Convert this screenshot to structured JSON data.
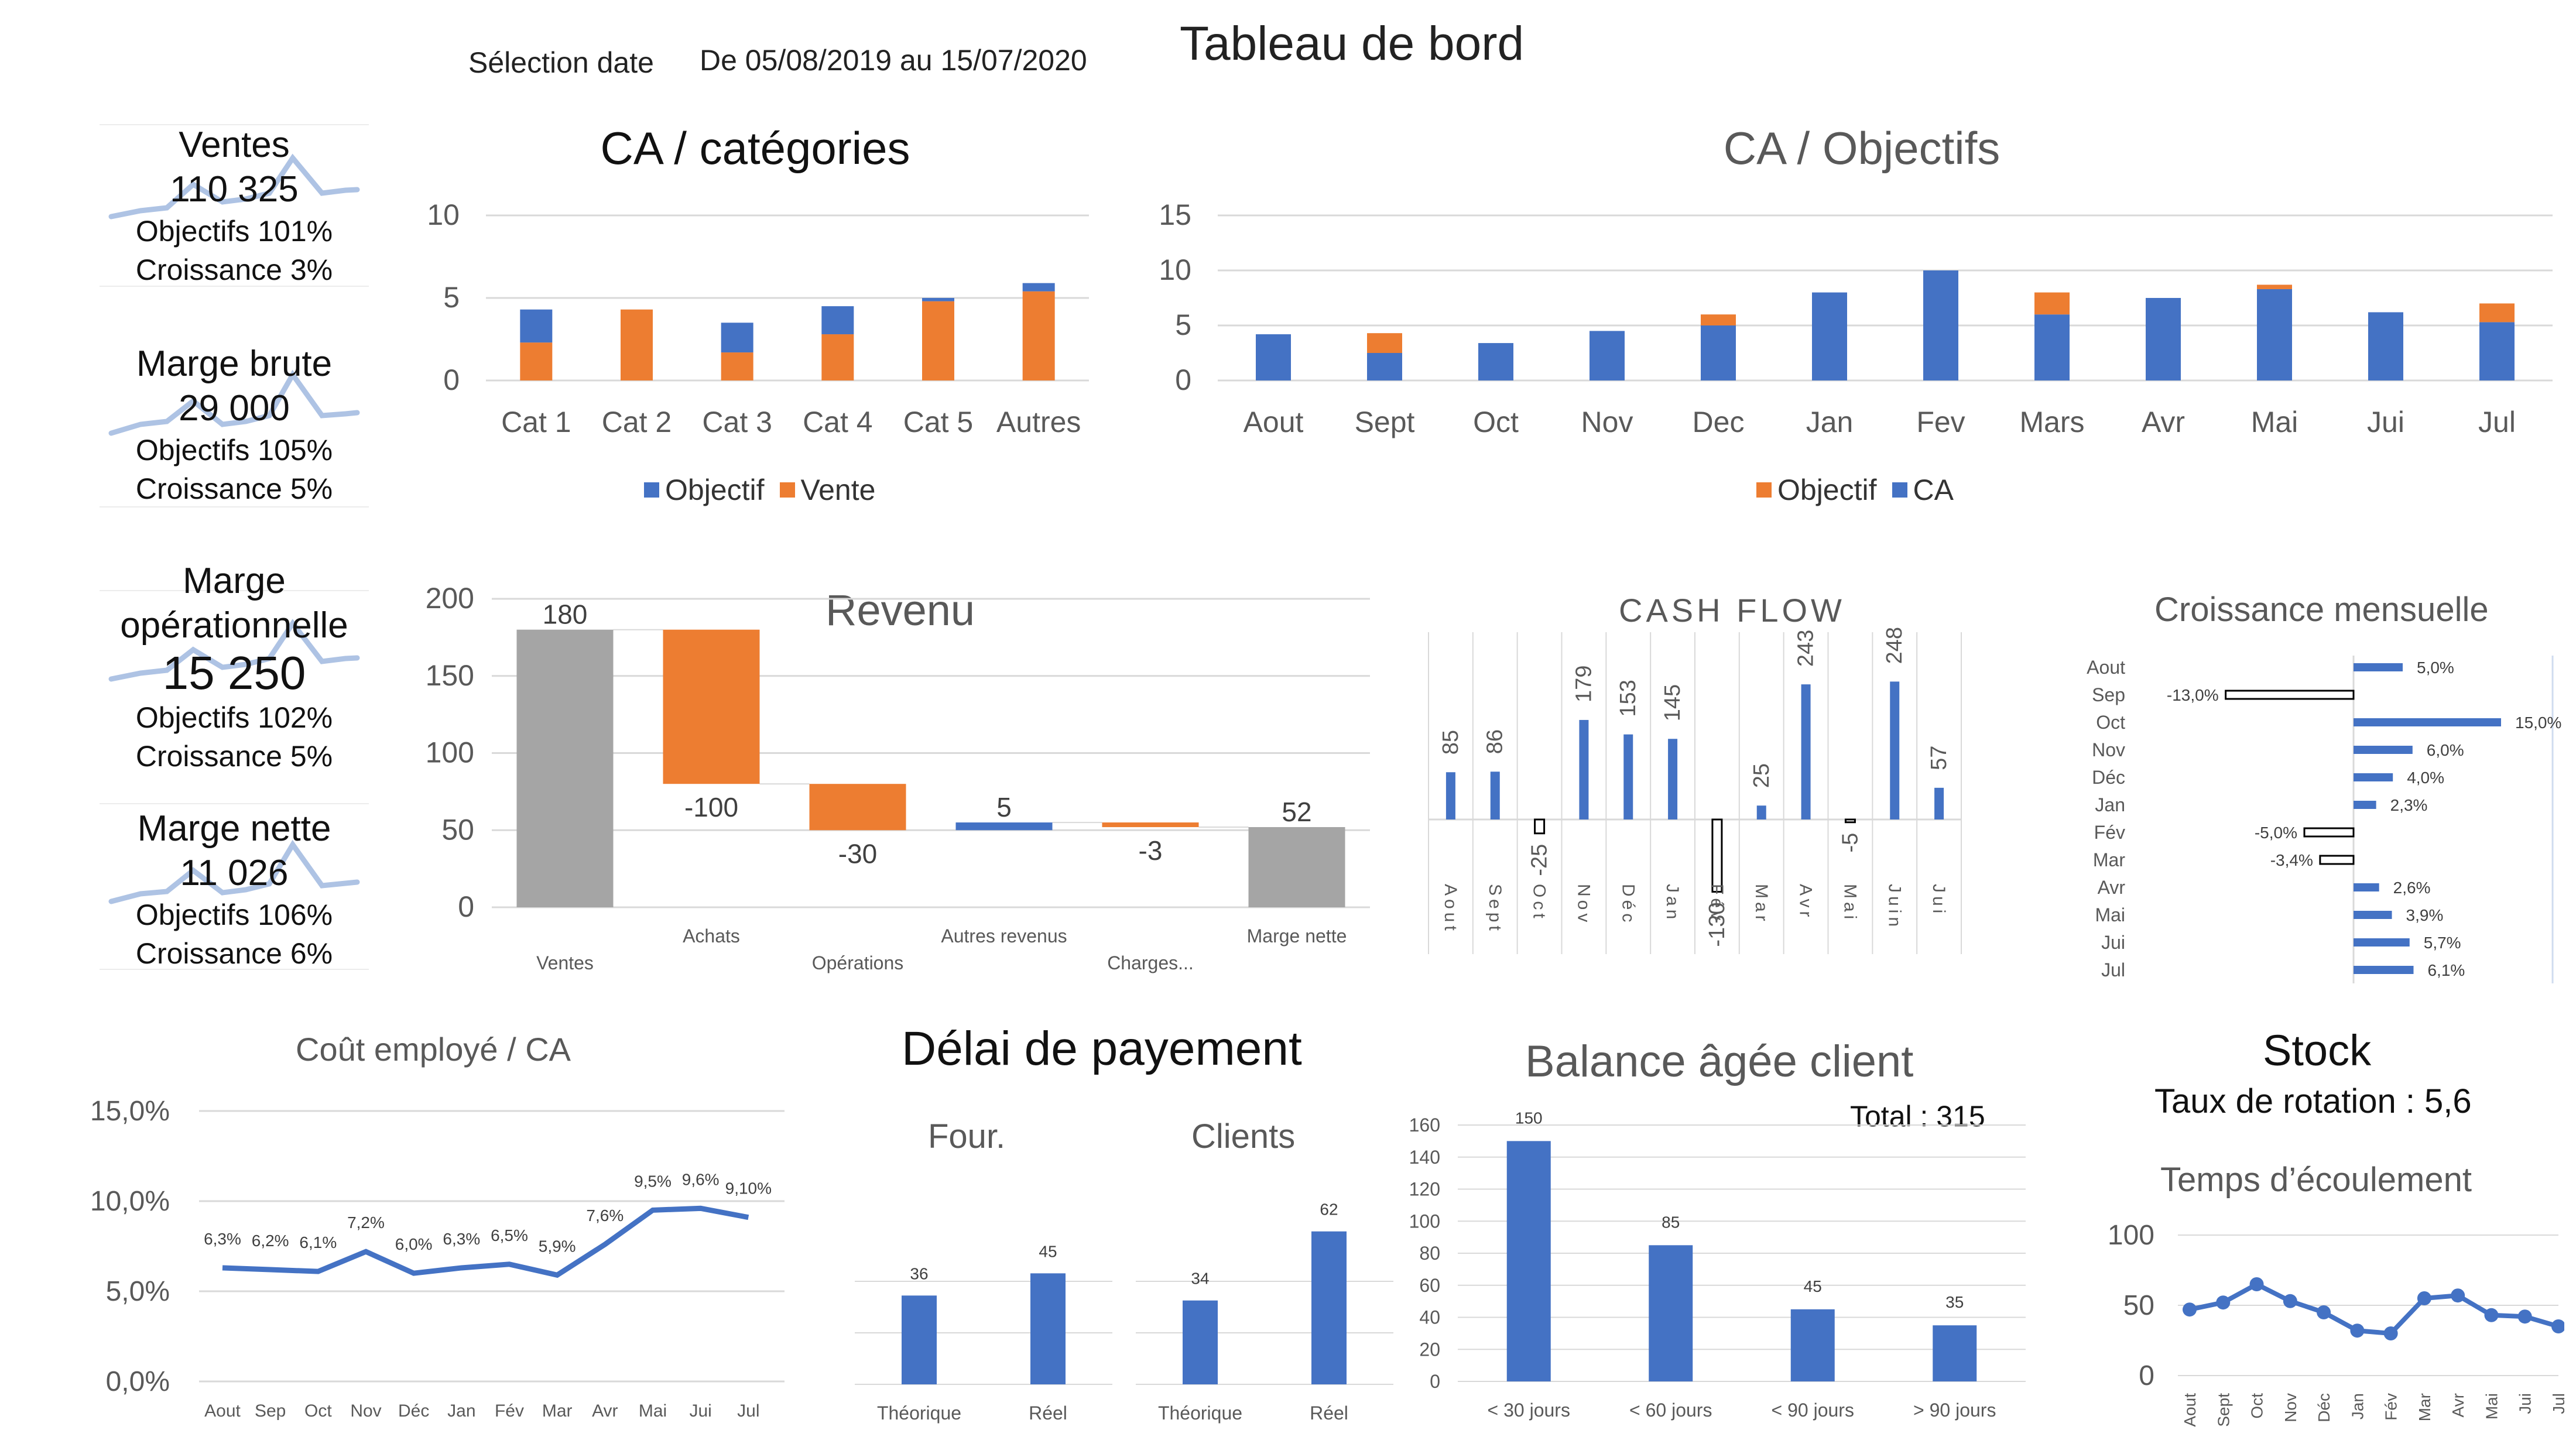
{
  "header": {
    "selection_label": "Sélection date",
    "date_range": "De 05/08/2019 au 15/07/2020",
    "title": "Tableau de bord"
  },
  "colors": {
    "blue": "#4472c4",
    "orange": "#ed7d31",
    "gray": "#a5a5a5",
    "spark": "#aec3e4"
  },
  "kpis": [
    {
      "label": "Ventes",
      "value": "110 325",
      "objectifs": "Objectifs 101%",
      "croissance": "Croissance  3%"
    },
    {
      "label": "Marge brute",
      "value": "29 000",
      "objectifs": "Objectifs 105%",
      "croissance": "Croissance  5%"
    },
    {
      "label": "Marge",
      "label2": "opérationnelle",
      "value": "15 250",
      "objectifs": "Objectifs 102%",
      "croissance": "Croissance  5%"
    },
    {
      "label": "Marge nette",
      "value": "11 026",
      "objectifs": "Objectifs 106%",
      "croissance": "Croissance  6%"
    }
  ],
  "chart_data": [
    {
      "id": "ca-categories",
      "type": "bar",
      "stacked": true,
      "title": "CA / catégories",
      "categories": [
        "Cat 1",
        "Cat 2",
        "Cat 3",
        "Cat 4",
        "Cat 5",
        "Autres"
      ],
      "series": [
        {
          "name": "Vente",
          "color": "#ed7d31",
          "values": [
            2.3,
            4.3,
            1.7,
            2.8,
            4.8,
            5.4
          ]
        },
        {
          "name": "Objectif",
          "color": "#4472c4",
          "values": [
            2.0,
            0.0,
            1.8,
            1.7,
            0.2,
            0.5
          ]
        }
      ],
      "legend": [
        "Objectif",
        "Vente"
      ],
      "yticks": [
        0,
        5,
        10
      ],
      "ylim": [
        0,
        10
      ],
      "grid": true,
      "legend_position": "bottom"
    },
    {
      "id": "ca-objectifs",
      "type": "bar",
      "stacked": true,
      "title": "CA / Objectifs",
      "categories": [
        "Aout",
        "Sept",
        "Oct",
        "Nov",
        "Dec",
        "Jan",
        "Fev",
        "Mars",
        "Avr",
        "Mai",
        "Jui",
        "Jul"
      ],
      "series": [
        {
          "name": "CA",
          "color": "#4472c4",
          "values": [
            4.2,
            2.5,
            3.4,
            4.5,
            5.0,
            8.0,
            10.0,
            6.0,
            7.5,
            8.3,
            6.2,
            5.3
          ]
        },
        {
          "name": "Objectif",
          "color": "#ed7d31",
          "values": [
            0,
            1.8,
            0,
            0,
            1.0,
            0,
            0,
            2.0,
            0,
            0.4,
            0,
            1.7
          ]
        }
      ],
      "legend": [
        "Objectif",
        "CA"
      ],
      "yticks": [
        0,
        5,
        10,
        15
      ],
      "ylim": [
        0,
        15
      ],
      "grid": true,
      "legend_position": "bottom"
    },
    {
      "id": "revenu",
      "type": "waterfall",
      "title": "Revenu",
      "categories": [
        "Ventes",
        "Achats",
        "Opérations",
        "Autres revenus",
        "Charges...",
        "Marge nette"
      ],
      "values": [
        180,
        -100,
        -30,
        5,
        -3,
        52
      ],
      "labels": [
        "180",
        "-100",
        "-30",
        "5",
        "-3",
        "52"
      ],
      "yticks": [
        0,
        50,
        100,
        150,
        200
      ],
      "ylim": [
        0,
        200
      ]
    },
    {
      "id": "cash-flow",
      "type": "bar",
      "title": "CASH FLOW",
      "categories": [
        "Aout",
        "Sept",
        "Oct",
        "Nov",
        "Déc",
        "Jan",
        "Fév",
        "Mar",
        "Avr",
        "Mai",
        "Juin",
        "Jui"
      ],
      "values": [
        85,
        86,
        -25,
        179,
        153,
        145,
        -130,
        25,
        243,
        -5,
        248,
        57
      ],
      "labels": [
        "85",
        "86",
        "-25",
        "179",
        "153",
        "145",
        "-130",
        "25",
        "243",
        "-5",
        "248",
        "57"
      ]
    },
    {
      "id": "croissance-mensuelle",
      "type": "bar",
      "orientation": "horizontal",
      "title": "Croissance mensuelle",
      "categories": [
        "Aout",
        "Sep",
        "Oct",
        "Nov",
        "Déc",
        "Jan",
        "Fév",
        "Mar",
        "Avr",
        "Mai",
        "Jui",
        "Jul"
      ],
      "values": [
        5.0,
        -13.0,
        15.0,
        6.0,
        4.0,
        2.3,
        -5.0,
        -3.4,
        2.6,
        3.9,
        5.7,
        6.1
      ],
      "labels": [
        "5,0%",
        "-13,0%",
        "15,0%",
        "6,0%",
        "4,0%",
        "2,3%",
        "-5,0%",
        "-3,4%",
        "2,6%",
        "3,9%",
        "5,7%",
        "6,1%"
      ]
    },
    {
      "id": "cout-employe",
      "type": "line",
      "title": "Coût employé / CA",
      "categories": [
        "Aout",
        "Sep",
        "Oct",
        "Nov",
        "Déc",
        "Jan",
        "Fév",
        "Mar",
        "Avr",
        "Mai",
        "Jui",
        "Jul"
      ],
      "values": [
        6.3,
        6.2,
        6.1,
        7.2,
        6.0,
        6.3,
        6.5,
        5.9,
        7.6,
        9.5,
        9.6,
        9.1
      ],
      "labels": [
        "6,3%",
        "6,2%",
        "6,1%",
        "7,2%",
        "6,0%",
        "6,3%",
        "6,5%",
        "5,9%",
        "7,6%",
        "9,5%",
        "9,6%",
        "9,10%"
      ],
      "yticks": [
        "0,0%",
        "5,0%",
        "10,0%",
        "15,0%"
      ],
      "ylim": [
        0,
        15
      ],
      "grid": true
    },
    {
      "id": "delai-four",
      "type": "bar",
      "title": "Four.",
      "categories": [
        "Théorique",
        "Réel"
      ],
      "values": [
        36,
        45
      ],
      "ylim": [
        0,
        70
      ]
    },
    {
      "id": "delai-clients",
      "type": "bar",
      "title": "Clients",
      "categories": [
        "Théorique",
        "Réel"
      ],
      "values": [
        34,
        62
      ],
      "ylim": [
        0,
        70
      ]
    },
    {
      "id": "balance-agee",
      "type": "bar",
      "title": "Balance âgée client",
      "annotation": "Total : 315",
      "categories": [
        "< 30 jours",
        "< 60 jours",
        "< 90 jours",
        "> 90 jours"
      ],
      "values": [
        150,
        85,
        45,
        35
      ],
      "yticks": [
        0,
        20,
        40,
        60,
        80,
        100,
        120,
        140,
        160
      ],
      "ylim": [
        0,
        160
      ],
      "grid": true
    },
    {
      "id": "temps-ecoulement",
      "type": "line",
      "title": "Temps d’écoulement",
      "categories": [
        "Aout",
        "Sept",
        "Oct",
        "Nov",
        "Déc",
        "Jan",
        "Fév",
        "Mar",
        "Avr",
        "Mai",
        "Jui",
        "Jul"
      ],
      "values": [
        47,
        52,
        65,
        53,
        45,
        32,
        30,
        55,
        57,
        43,
        42,
        35
      ],
      "yticks": [
        0,
        50,
        100
      ],
      "ylim": [
        0,
        100
      ],
      "grid": true
    }
  ],
  "delai": {
    "title": "Délai de payement"
  },
  "stock": {
    "title": "Stock",
    "rotation": "Taux de rotation : 5,6"
  }
}
